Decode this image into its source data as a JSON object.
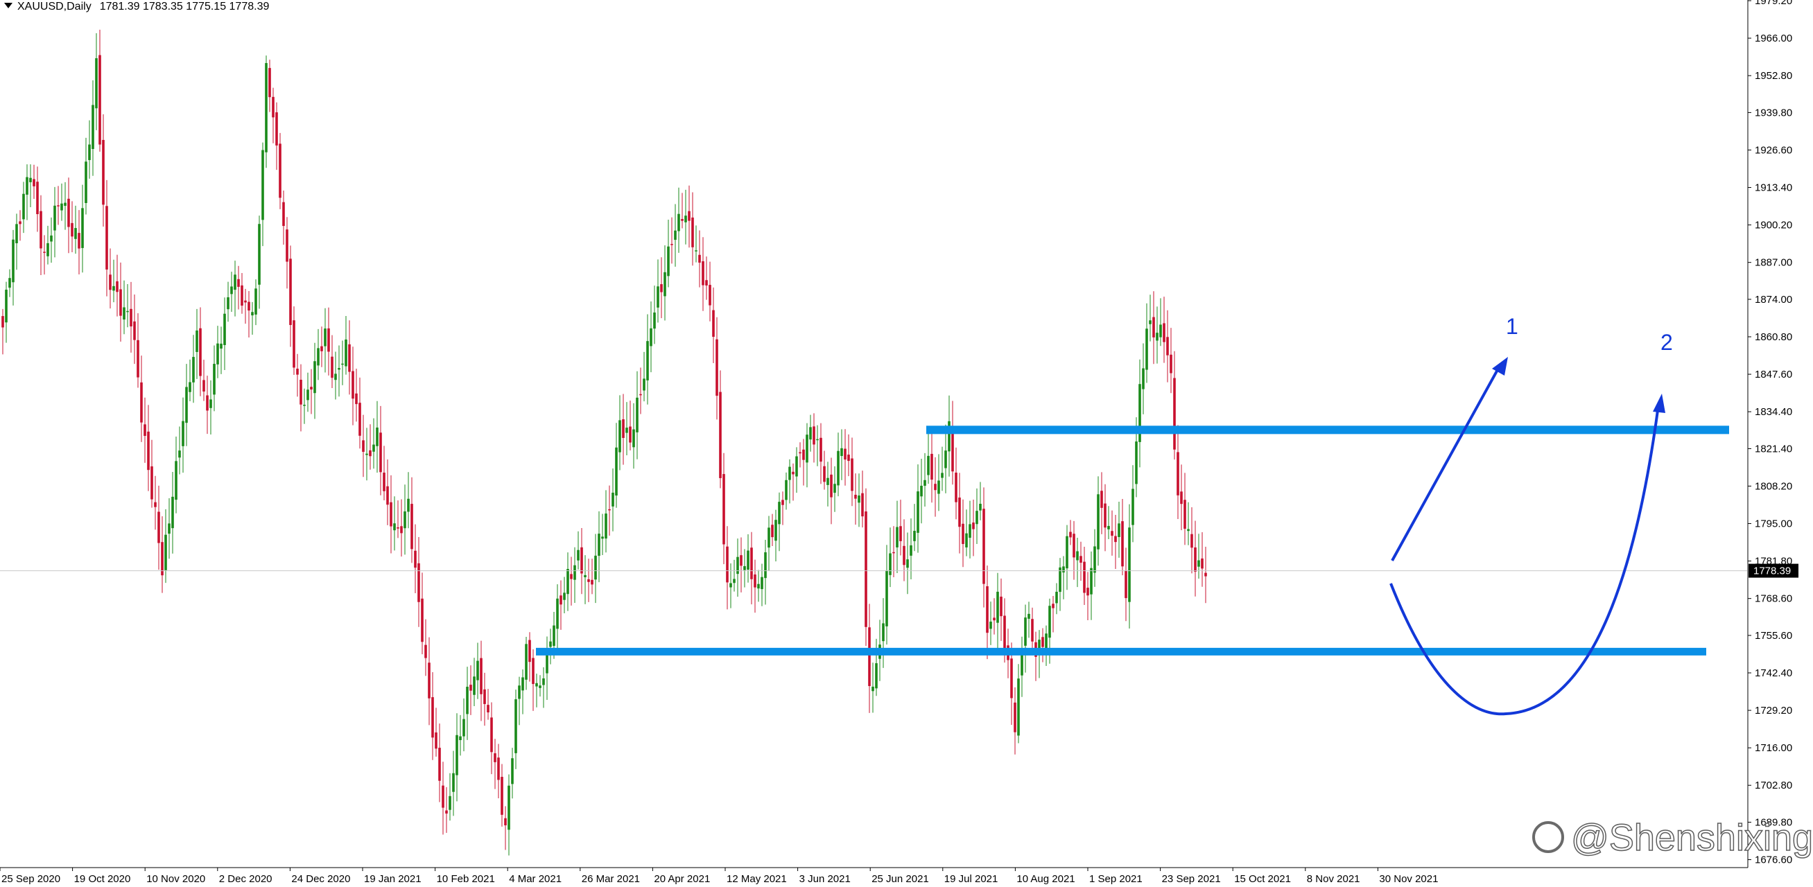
{
  "header": {
    "symbol": "XAUUSD,Daily",
    "ohlc": "1781.39 1783.35 1775.15 1778.39"
  },
  "watermark": {
    "text": "@Shenshixing",
    "icon": "weibo-icon"
  },
  "colors": {
    "bull": "#1a8a1a",
    "bear": "#c8102e",
    "zone": "#0a8fe6",
    "arrow": "#1238d8",
    "grid": "#c8c8c8"
  },
  "chart_data": {
    "type": "candlestick",
    "ylim": [
      1676.0,
      1979.2
    ],
    "yticks": [
      "1979.20",
      "1966.00",
      "1952.80",
      "1939.80",
      "1926.60",
      "1913.40",
      "1900.20",
      "1887.00",
      "1874.00",
      "1860.80",
      "1847.60",
      "1834.40",
      "1821.40",
      "1808.20",
      "1795.00",
      "1781.80",
      "1768.60",
      "1755.60",
      "1742.40",
      "1729.20",
      "1716.00",
      "1702.80",
      "1689.80",
      "1676.60"
    ],
    "xticks": [
      "25 Sep 2020",
      "19 Oct 2020",
      "10 Nov 2020",
      "2 Dec 2020",
      "24 Dec 2020",
      "19 Jan 2021",
      "10 Feb 2021",
      "4 Mar 2021",
      "26 Mar 2021",
      "20 Apr 2021",
      "12 May 2021",
      "3 Jun 2021",
      "25 Jun 2021",
      "19 Jul 2021",
      "10 Aug 2021",
      "1 Sep 2021",
      "23 Sep 2021",
      "15 Oct 2021",
      "8 Nov 2021",
      "30 Nov 2021"
    ],
    "last_price": "1778.39",
    "resistance_zone": 1828.0,
    "support_zone": 1750.0,
    "scenario_labels": [
      "1",
      "2"
    ],
    "anchors": [
      {
        "i": 0,
        "p": 1862
      },
      {
        "i": 3,
        "p": 1896
      },
      {
        "i": 8,
        "p": 1918
      },
      {
        "i": 12,
        "p": 1890
      },
      {
        "i": 17,
        "p": 1910
      },
      {
        "i": 22,
        "p": 1892
      },
      {
        "i": 27,
        "p": 1958
      },
      {
        "i": 30,
        "p": 1880
      },
      {
        "i": 33,
        "p": 1876
      },
      {
        "i": 37,
        "p": 1866
      },
      {
        "i": 40,
        "p": 1834
      },
      {
        "i": 43,
        "p": 1807
      },
      {
        "i": 46,
        "p": 1777
      },
      {
        "i": 49,
        "p": 1808
      },
      {
        "i": 53,
        "p": 1838
      },
      {
        "i": 56,
        "p": 1862
      },
      {
        "i": 59,
        "p": 1832
      },
      {
        "i": 62,
        "p": 1856
      },
      {
        "i": 66,
        "p": 1882
      },
      {
        "i": 70,
        "p": 1870
      },
      {
        "i": 73,
        "p": 1876
      },
      {
        "i": 76,
        "p": 1952
      },
      {
        "i": 78,
        "p": 1940
      },
      {
        "i": 81,
        "p": 1901
      },
      {
        "i": 84,
        "p": 1848
      },
      {
        "i": 87,
        "p": 1838
      },
      {
        "i": 90,
        "p": 1849
      },
      {
        "i": 93,
        "p": 1862
      },
      {
        "i": 96,
        "p": 1846
      },
      {
        "i": 99,
        "p": 1855
      },
      {
        "i": 102,
        "p": 1836
      },
      {
        "i": 105,
        "p": 1815
      },
      {
        "i": 108,
        "p": 1826
      },
      {
        "i": 111,
        "p": 1800
      },
      {
        "i": 114,
        "p": 1789
      },
      {
        "i": 117,
        "p": 1804
      },
      {
        "i": 120,
        "p": 1765
      },
      {
        "i": 123,
        "p": 1733
      },
      {
        "i": 126,
        "p": 1706
      },
      {
        "i": 128,
        "p": 1688
      },
      {
        "i": 131,
        "p": 1718
      },
      {
        "i": 134,
        "p": 1735
      },
      {
        "i": 137,
        "p": 1742
      },
      {
        "i": 140,
        "p": 1728
      },
      {
        "i": 143,
        "p": 1701
      },
      {
        "i": 145,
        "p": 1686
      },
      {
        "i": 148,
        "p": 1733
      },
      {
        "i": 151,
        "p": 1748
      },
      {
        "i": 154,
        "p": 1737
      },
      {
        "i": 157,
        "p": 1748
      },
      {
        "i": 160,
        "p": 1764
      },
      {
        "i": 163,
        "p": 1778
      },
      {
        "i": 166,
        "p": 1781
      },
      {
        "i": 169,
        "p": 1773
      },
      {
        "i": 172,
        "p": 1790
      },
      {
        "i": 175,
        "p": 1797
      },
      {
        "i": 178,
        "p": 1833
      },
      {
        "i": 181,
        "p": 1822
      },
      {
        "i": 184,
        "p": 1842
      },
      {
        "i": 187,
        "p": 1866
      },
      {
        "i": 190,
        "p": 1877
      },
      {
        "i": 193,
        "p": 1898
      },
      {
        "i": 196,
        "p": 1903
      },
      {
        "i": 199,
        "p": 1896
      },
      {
        "i": 202,
        "p": 1883
      },
      {
        "i": 205,
        "p": 1862
      },
      {
        "i": 207,
        "p": 1812
      },
      {
        "i": 209,
        "p": 1773
      },
      {
        "i": 212,
        "p": 1778
      },
      {
        "i": 215,
        "p": 1784
      },
      {
        "i": 218,
        "p": 1770
      },
      {
        "i": 221,
        "p": 1790
      },
      {
        "i": 224,
        "p": 1802
      },
      {
        "i": 227,
        "p": 1811
      },
      {
        "i": 230,
        "p": 1820
      },
      {
        "i": 233,
        "p": 1828
      },
      {
        "i": 236,
        "p": 1816
      },
      {
        "i": 239,
        "p": 1807
      },
      {
        "i": 242,
        "p": 1821
      },
      {
        "i": 245,
        "p": 1810
      },
      {
        "i": 248,
        "p": 1800
      },
      {
        "i": 249,
        "p": 1757
      },
      {
        "i": 250,
        "p": 1733
      },
      {
        "i": 253,
        "p": 1752
      },
      {
        "i": 255,
        "p": 1778
      },
      {
        "i": 258,
        "p": 1790
      },
      {
        "i": 261,
        "p": 1782
      },
      {
        "i": 264,
        "p": 1802
      },
      {
        "i": 267,
        "p": 1816
      },
      {
        "i": 270,
        "p": 1808
      },
      {
        "i": 273,
        "p": 1826
      },
      {
        "i": 276,
        "p": 1793
      },
      {
        "i": 279,
        "p": 1791
      },
      {
        "i": 282,
        "p": 1800
      },
      {
        "i": 284,
        "p": 1757
      },
      {
        "i": 287,
        "p": 1767
      },
      {
        "i": 290,
        "p": 1745
      },
      {
        "i": 292,
        "p": 1726
      },
      {
        "i": 295,
        "p": 1762
      },
      {
        "i": 298,
        "p": 1751
      },
      {
        "i": 301,
        "p": 1757
      },
      {
        "i": 304,
        "p": 1770
      },
      {
        "i": 307,
        "p": 1792
      },
      {
        "i": 310,
        "p": 1782
      },
      {
        "i": 313,
        "p": 1769
      },
      {
        "i": 316,
        "p": 1803
      },
      {
        "i": 319,
        "p": 1790
      },
      {
        "i": 322,
        "p": 1794
      },
      {
        "i": 324,
        "p": 1770
      },
      {
        "i": 326,
        "p": 1807
      },
      {
        "i": 328,
        "p": 1842
      },
      {
        "i": 330,
        "p": 1866
      },
      {
        "i": 333,
        "p": 1860
      },
      {
        "i": 335,
        "p": 1862
      },
      {
        "i": 337,
        "p": 1848
      },
      {
        "i": 339,
        "p": 1803
      },
      {
        "i": 342,
        "p": 1790
      },
      {
        "i": 344,
        "p": 1783
      },
      {
        "i": 347,
        "p": 1778
      }
    ]
  }
}
